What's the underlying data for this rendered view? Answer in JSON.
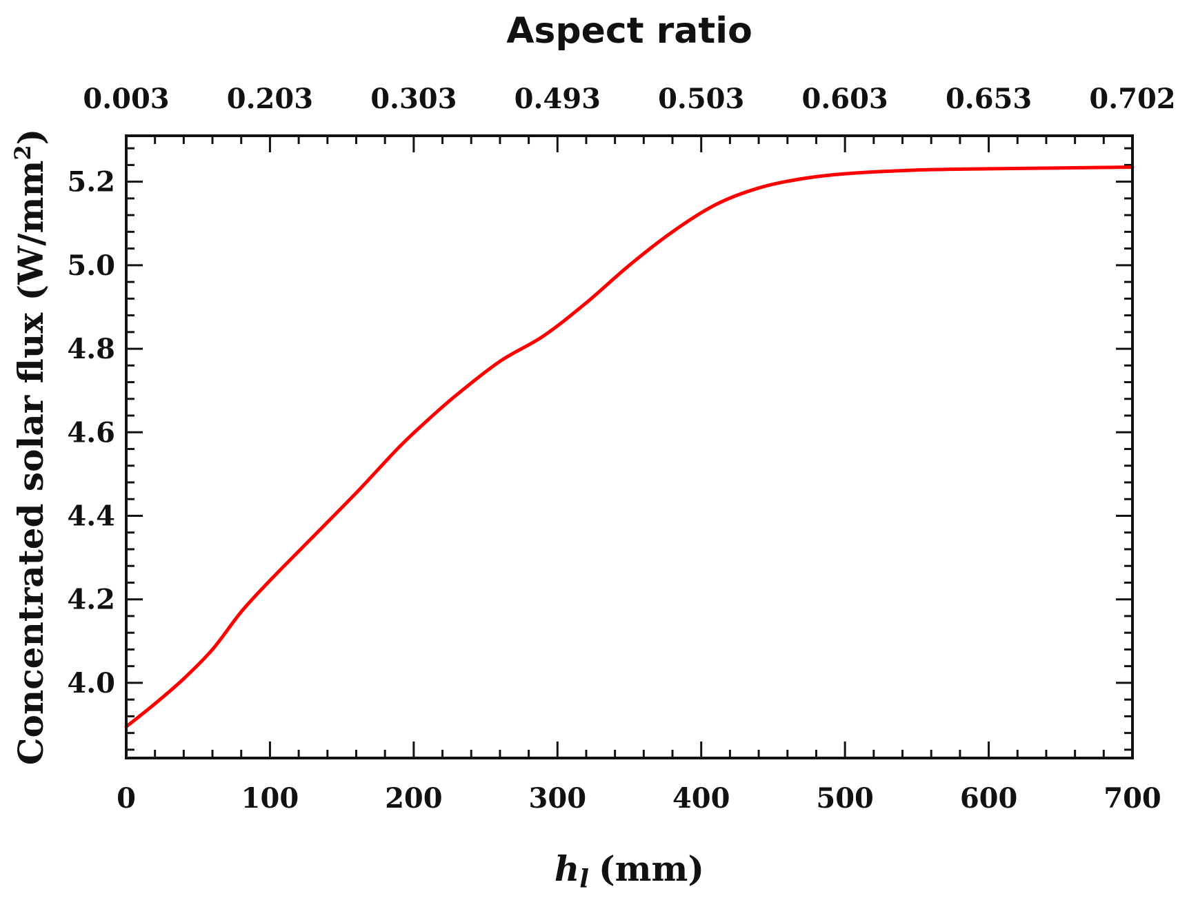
{
  "chart_data": {
    "type": "line",
    "title": "Aspect ratio",
    "xlabel_var": "h",
    "xlabel_sub": "l",
    "xlabel_unit": "(mm)",
    "ylabel_main": "Concentrated solar flux (W/mm",
    "ylabel_sup": "2",
    "ylabel_close": ")",
    "xlim": [
      0,
      700
    ],
    "ylim": [
      3.82,
      5.31
    ],
    "xticks": [
      0,
      100,
      200,
      300,
      400,
      500,
      600,
      700
    ],
    "xtick_labels": [
      "0",
      "100",
      "200",
      "300",
      "400",
      "500",
      "600",
      "700"
    ],
    "yticks": [
      4.0,
      4.2,
      4.4,
      4.6,
      4.8,
      5.0,
      5.2
    ],
    "ytick_labels": [
      "4.0",
      "4.2",
      "4.4",
      "4.6",
      "4.8",
      "5.0",
      "5.2"
    ],
    "top_axis": {
      "label": "Aspect ratio",
      "positions": [
        0,
        100,
        200,
        300,
        400,
        500,
        600,
        700
      ],
      "tick_labels": [
        "0.003",
        "0.203",
        "0.303",
        "0.493",
        "0.503",
        "0.603",
        "0.653",
        "0.702"
      ]
    },
    "series": [
      {
        "name": "Concentrated solar flux",
        "color": "#ff0000",
        "x": [
          0,
          20,
          40,
          60,
          80,
          100,
          130,
          160,
          190,
          210,
          230,
          260,
          290,
          320,
          350,
          380,
          410,
          440,
          470,
          500,
          550,
          600,
          650,
          700
        ],
        "y": [
          3.895,
          3.95,
          4.01,
          4.08,
          4.17,
          4.245,
          4.35,
          4.455,
          4.565,
          4.63,
          4.69,
          4.77,
          4.83,
          4.91,
          5.0,
          5.08,
          5.145,
          5.185,
          5.207,
          5.219,
          5.228,
          5.231,
          5.233,
          5.235
        ]
      }
    ]
  }
}
